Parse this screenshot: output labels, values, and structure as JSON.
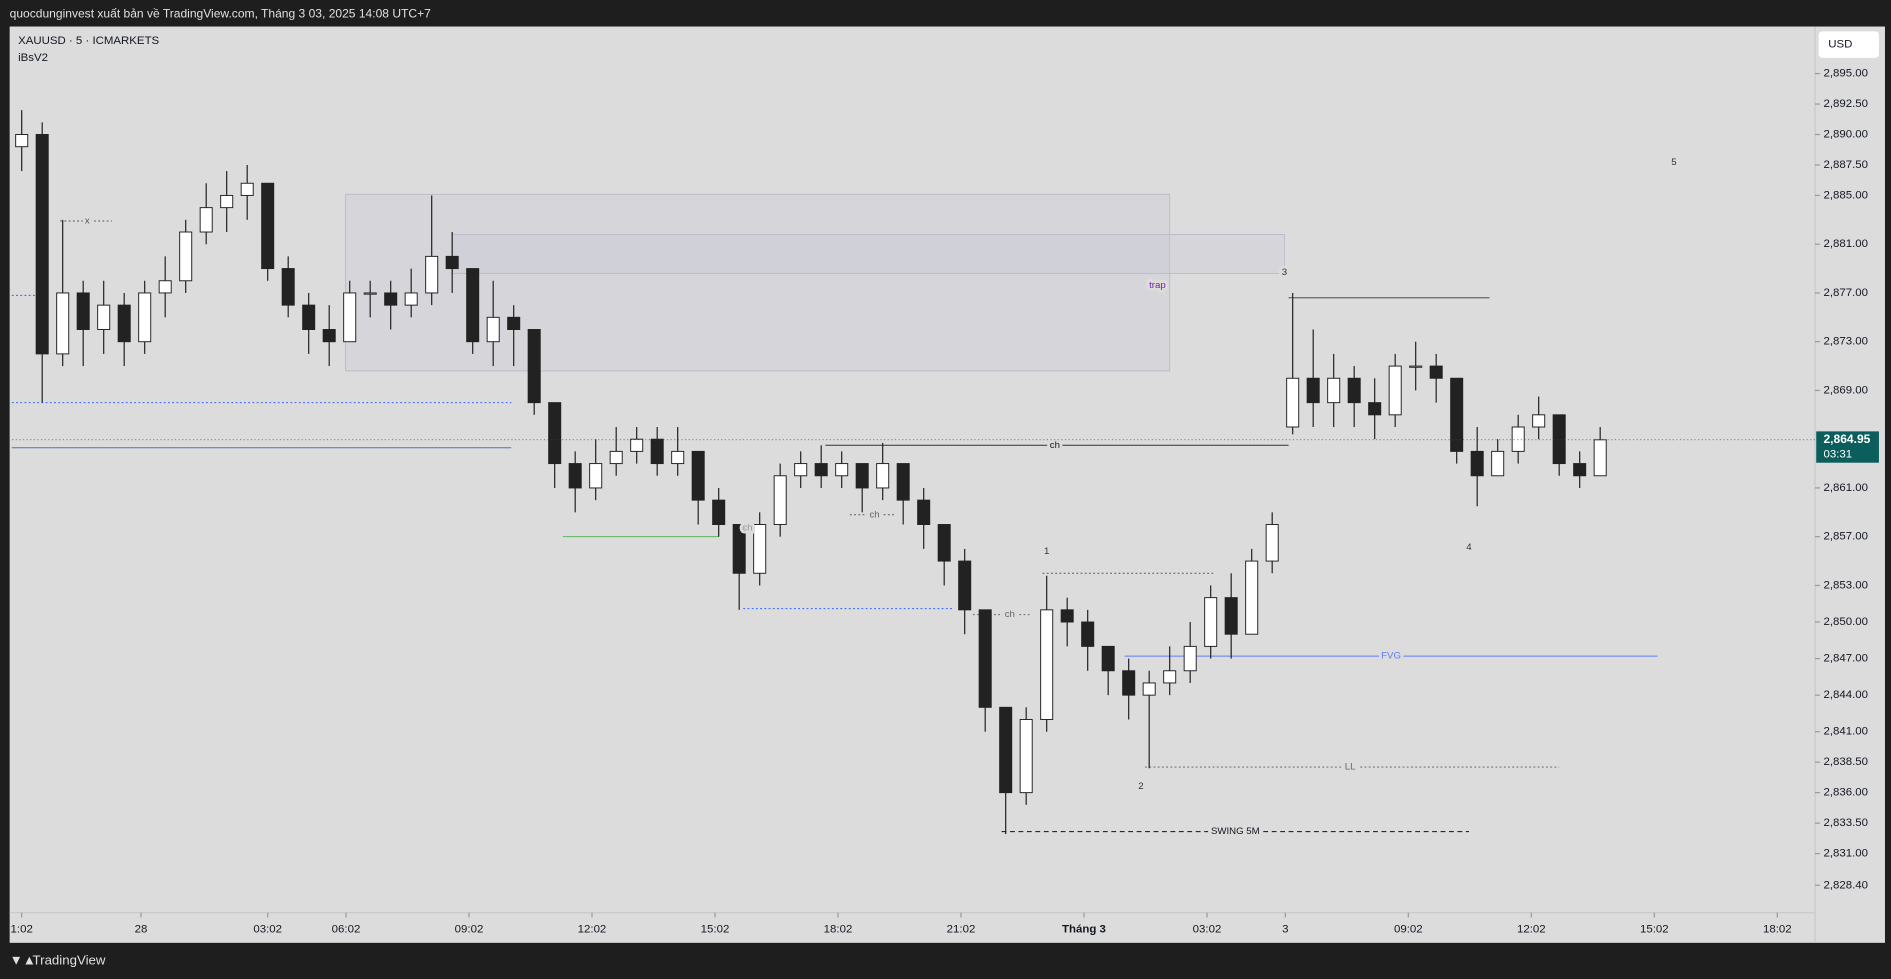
{
  "header": {
    "publisher": "quocdunginvest xuất bản về TradingView.com, Tháng 3 03, 2025 14:08 UTC+7",
    "symbol": "XAUUSD · 5 · ICMARKETS",
    "indicator": "iBsV2",
    "currency": "USD",
    "brand": "TradingView"
  },
  "chart_data": {
    "type": "candlestick",
    "x": [
      0,
      0.5,
      1,
      1.5,
      2,
      2.5,
      3,
      3.5,
      4,
      4.5,
      5,
      5.5,
      6,
      6.5,
      7,
      7.5,
      8,
      8.5,
      9,
      9.5,
      10,
      10.5,
      11,
      11.5,
      12,
      12.5,
      13,
      13.5,
      14,
      14.5,
      15,
      15.5,
      16,
      16.5,
      17,
      17.5,
      18,
      18.5,
      19,
      19.5,
      20,
      20.5,
      21,
      21.5,
      22,
      22.5,
      23,
      23.5,
      24,
      24.5,
      25,
      25.5,
      26,
      26.5,
      27,
      27.5,
      28,
      28.5,
      29,
      29.5,
      30,
      30.5,
      31,
      31.5,
      32,
      32.5,
      33,
      33.5,
      34,
      34.5,
      35,
      35.5,
      36,
      36.5,
      37,
      37.5,
      38,
      38.5
    ],
    "open": [
      2889,
      2890,
      2872,
      2877,
      2874,
      2876,
      2873,
      2877,
      2878,
      2882,
      2884,
      2885,
      2886,
      2879,
      2876,
      2874,
      2873,
      2877,
      2877,
      2876,
      2877,
      2880,
      2879,
      2873,
      2875,
      2874,
      2868,
      2863,
      2861,
      2863,
      2864,
      2865,
      2863,
      2864,
      2860,
      2858,
      2854,
      2858,
      2862,
      2863,
      2862,
      2863,
      2861,
      2863,
      2860,
      2858,
      2855,
      2851,
      2843,
      2836,
      2842,
      2851,
      2850,
      2848,
      2846,
      2844,
      2845,
      2846,
      2848,
      2852,
      2849,
      2855,
      2866,
      2870,
      2868,
      2870,
      2868,
      2867,
      2871,
      2871,
      2870,
      2864,
      2862,
      2864,
      2866,
      2867,
      2863,
      2862
    ],
    "high": [
      2892,
      2891,
      2883,
      2878,
      2878,
      2877,
      2878,
      2880,
      2883,
      2886,
      2887,
      2887.5,
      2886,
      2880,
      2877,
      2876,
      2878,
      2878,
      2878,
      2879,
      2885,
      2882,
      2879,
      2878,
      2876,
      2874,
      2868,
      2864,
      2865,
      2866,
      2866,
      2866,
      2866,
      2864,
      2861,
      2858,
      2859,
      2863,
      2864,
      2864.5,
      2864,
      2863,
      2864.7,
      2863,
      2861,
      2858,
      2856,
      2851,
      2843,
      2843,
      2853.8,
      2852,
      2851,
      2848,
      2847,
      2846,
      2848,
      2850,
      2853,
      2854,
      2856,
      2859,
      2877,
      2874,
      2872,
      2871,
      2870,
      2872,
      2873,
      2872,
      2870,
      2866,
      2865,
      2867,
      2868.5,
      2867,
      2864,
      2866
    ],
    "low": [
      2887,
      2868,
      2871,
      2871,
      2872,
      2871,
      2872,
      2875,
      2877,
      2881,
      2882,
      2883,
      2878,
      2875,
      2872,
      2871,
      2873,
      2875,
      2874,
      2875,
      2876,
      2877,
      2872,
      2871,
      2871,
      2867,
      2861,
      2859,
      2860,
      2862,
      2863,
      2862,
      2862,
      2858,
      2857,
      2851,
      2853,
      2857,
      2861,
      2861,
      2861,
      2859,
      2860,
      2858,
      2856,
      2853,
      2849,
      2841,
      2832.6,
      2835,
      2841,
      2848,
      2846,
      2844,
      2842,
      2838,
      2844,
      2845,
      2847,
      2847,
      2849,
      2854,
      2865.4,
      2866,
      2866,
      2866,
      2865,
      2866,
      2869,
      2868,
      2863,
      2859.5,
      2862,
      2863,
      2865,
      2862,
      2861,
      2862
    ],
    "close": [
      2890,
      2872,
      2877,
      2874,
      2876,
      2873,
      2877,
      2878,
      2882,
      2884,
      2885,
      2886,
      2879,
      2876,
      2874,
      2873,
      2877,
      2877,
      2876,
      2877,
      2880,
      2879,
      2873,
      2875,
      2874,
      2868,
      2863,
      2861,
      2863,
      2864,
      2865,
      2863,
      2864,
      2860,
      2858,
      2854,
      2858,
      2862,
      2863,
      2862,
      2863,
      2861,
      2863,
      2860,
      2858,
      2855,
      2851,
      2843,
      2836,
      2842,
      2851,
      2850,
      2848,
      2846,
      2844,
      2845,
      2846,
      2848,
      2852,
      2849,
      2855,
      2858,
      2870,
      2868,
      2870,
      2868,
      2867,
      2871,
      2871,
      2870,
      2864,
      2862,
      2864,
      2866,
      2867,
      2863,
      2862,
      2864.95
    ],
    "up_color": "#ffffff",
    "down_color": "#222222",
    "wick_color": "#222222",
    "xlim": [
      -0.235,
      43.74
    ],
    "xticks": [
      {
        "value": 0,
        "label": "1:02"
      },
      {
        "value": 2.91,
        "label": "28"
      },
      {
        "value": 6,
        "label": "03:02"
      },
      {
        "value": 7.91,
        "label": "06:02"
      },
      {
        "value": 10.91,
        "label": "09:02"
      },
      {
        "value": 13.91,
        "label": "12:02"
      },
      {
        "value": 16.91,
        "label": "15:02"
      },
      {
        "value": 19.91,
        "label": "18:02"
      },
      {
        "value": 22.91,
        "label": "21:02"
      },
      {
        "value": 25.91,
        "label": "Tháng 3"
      },
      {
        "value": 28.91,
        "label": "03:02"
      },
      {
        "value": 30.82,
        "label": "3"
      },
      {
        "value": 33.82,
        "label": "09:02"
      },
      {
        "value": 36.82,
        "label": "12:02"
      },
      {
        "value": 39.82,
        "label": "15:02"
      },
      {
        "value": 42.82,
        "label": "18:02"
      }
    ],
    "ylim": [
      2826.15,
      2898.86
    ],
    "yticks": [
      {
        "value": 2895,
        "label": "2,895.00"
      },
      {
        "value": 2892.5,
        "label": "2,892.50"
      },
      {
        "value": 2890,
        "label": "2,890.00"
      },
      {
        "value": 2887.5,
        "label": "2,887.50"
      },
      {
        "value": 2885,
        "label": "2,885.00"
      },
      {
        "value": 2881,
        "label": "2,881.00"
      },
      {
        "value": 2877,
        "label": "2,877.00"
      },
      {
        "value": 2873,
        "label": "2,873.00"
      },
      {
        "value": 2869,
        "label": "2,869.00"
      },
      {
        "value": 2861,
        "label": "2,861.00"
      },
      {
        "value": 2857,
        "label": "2,857.00"
      },
      {
        "value": 2853,
        "label": "2,853.00"
      },
      {
        "value": 2850,
        "label": "2,850.00"
      },
      {
        "value": 2847,
        "label": "2,847.00"
      },
      {
        "value": 2844,
        "label": "2,844.00"
      },
      {
        "value": 2841,
        "label": "2,841.00"
      },
      {
        "value": 2838.5,
        "label": "2,838.50"
      },
      {
        "value": 2836,
        "label": "2,836.00"
      },
      {
        "value": 2833.5,
        "label": "2,833.50"
      },
      {
        "value": 2831,
        "label": "2,831.00"
      },
      {
        "value": 2828.4,
        "label": "2,828.40"
      }
    ],
    "last_price": {
      "value": 2864.95,
      "label": "2,864.95"
    },
    "countdown": "03:31",
    "last_price_color": "#0b5e5c",
    "zones": [
      {
        "x": [
          7.9,
          28.0
        ],
        "y": [
          2870.6,
          2885.1
        ]
      },
      {
        "x": [
          10.5,
          30.8
        ],
        "y": [
          2878.6,
          2881.8
        ]
      }
    ],
    "levels": [
      {
        "price": 2876.8,
        "x": [
          -0.24,
          0.4
        ],
        "color": "#2962ff",
        "style": "dotted"
      },
      {
        "price": 2868,
        "x": [
          -0.24,
          11.94
        ],
        "color": "#2962ff",
        "style": "dotted"
      },
      {
        "price": 2864.3,
        "x": [
          -0.24,
          11.94
        ],
        "color": "#5c6bc0",
        "style": "solid"
      },
      {
        "price": 2882.9,
        "x": [
          0.94,
          2.2
        ],
        "color": "#555555",
        "style": "dotted"
      },
      {
        "price": 2857,
        "x": [
          13.2,
          17.0
        ],
        "color": "#4caf50",
        "style": "solid"
      },
      {
        "price": 2851.1,
        "x": [
          17.6,
          22.7
        ],
        "color": "#2962ff",
        "style": "dotted"
      },
      {
        "price": 2858.8,
        "x": [
          20.2,
          21.3
        ],
        "color": "#555555",
        "style": "dotted"
      },
      {
        "price": 2850.6,
        "x": [
          23.2,
          24.6
        ],
        "color": "#555555",
        "style": "dotted"
      },
      {
        "price": 2864.5,
        "x": [
          19.6,
          30.9
        ],
        "color": "#333333",
        "style": "solid"
      },
      {
        "price": 2876.6,
        "x": [
          30.9,
          35.8
        ],
        "color": "#333333",
        "style": "solid"
      },
      {
        "price": 2854,
        "x": [
          24.9,
          29.1
        ],
        "color": "#555555",
        "style": "dotted"
      },
      {
        "price": 2847.2,
        "x": [
          26.9,
          39.9
        ],
        "color": "#5c7cfa",
        "style": "solid"
      },
      {
        "price": 2838.1,
        "x": [
          27.4,
          37.5
        ],
        "color": "#555555",
        "style": "dotted"
      },
      {
        "price": 2832.8,
        "x": [
          23.9,
          35.3
        ],
        "color": "#111111",
        "style": "dashed"
      }
    ],
    "annotations": [
      {
        "text": "x",
        "x": 1.6,
        "y": 2882.9,
        "color": "#555555"
      },
      {
        "text": "trap",
        "x": 27.7,
        "y": 2877.6,
        "color": "#7b1fa2"
      },
      {
        "text": "ch",
        "x": 25.2,
        "y": 2864.5,
        "color": "#131722"
      },
      {
        "text": "ch",
        "x": 20.8,
        "y": 2858.8,
        "color": "#666666"
      },
      {
        "text": "ch",
        "x": 24.1,
        "y": 2850.6,
        "color": "#666666"
      },
      {
        "text": "ch",
        "x": 17.7,
        "y": 2857.7,
        "color": "#999999"
      },
      {
        "text": "FVG",
        "x": 33.4,
        "y": 2847.2,
        "color": "#5c7cfa"
      },
      {
        "text": "LL",
        "x": 32.4,
        "y": 2838.1,
        "color": "#666666"
      },
      {
        "text": "SWING 5M",
        "x": 29.6,
        "y": 2832.8,
        "color": "#131722"
      },
      {
        "text": "1",
        "x": 25.0,
        "y": 2855.8,
        "color": "#333333"
      },
      {
        "text": "2",
        "x": 27.3,
        "y": 2836.5,
        "color": "#333333"
      },
      {
        "text": "3",
        "x": 30.8,
        "y": 2878.7,
        "color": "#333333"
      },
      {
        "text": "4",
        "x": 35.3,
        "y": 2856.1,
        "color": "#333333"
      },
      {
        "text": "5",
        "x": 40.3,
        "y": 2887.7,
        "color": "#333333"
      }
    ]
  }
}
